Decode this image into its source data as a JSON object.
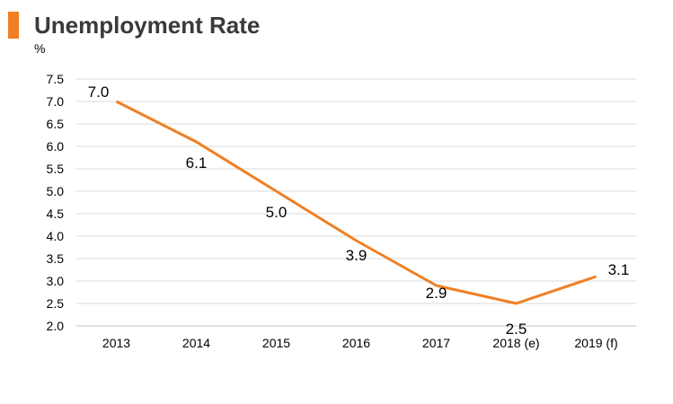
{
  "title": "Unemployment Rate",
  "unit": "%",
  "colors": {
    "accent": "#f07f23",
    "line": "#f07f23",
    "grid": "#d9d9d9"
  },
  "chart_data": {
    "type": "line",
    "title": "Unemployment Rate",
    "ylabel": "%",
    "xlabel": "",
    "categories": [
      "2013",
      "2014",
      "2015",
      "2016",
      "2017",
      "2018 (e)",
      "2019 (f)"
    ],
    "series": [
      {
        "values": [
          7.0,
          6.1,
          5.0,
          3.9,
          2.9,
          2.5,
          3.1
        ]
      }
    ],
    "data_labels": [
      "7.0",
      "6.1",
      "5.0",
      "3.9",
      "2.9",
      "2.5",
      "3.1"
    ],
    "ylim": [
      2.0,
      7.5
    ],
    "yticks": [
      "2.0",
      "2.5",
      "3.0",
      "3.5",
      "4.0",
      "4.5",
      "5.0",
      "5.5",
      "6.0",
      "6.5",
      "7.0",
      "7.5"
    ],
    "grid": true,
    "legend": "none"
  }
}
